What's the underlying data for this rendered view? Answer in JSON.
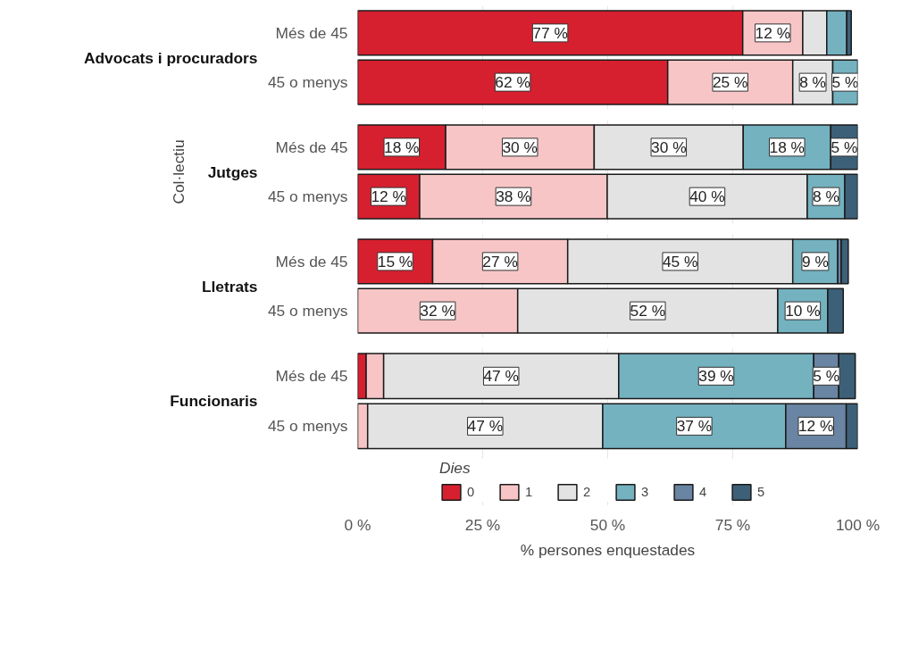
{
  "chart_data": [
    {
      "type": "bar",
      "orientation": "horizontal",
      "stacked": true,
      "title": "Advocats i procuradors",
      "categories": [
        "Més de 45",
        "45 o menys"
      ],
      "xlim": [
        0,
        100
      ],
      "xticks": [
        {
          "value": 0,
          "label": null
        },
        {
          "value": 25,
          "label": null
        },
        {
          "value": 50,
          "label": null
        },
        {
          "value": 75,
          "label": null
        },
        {
          "value": 100,
          "label": null
        }
      ],
      "tick_labels": "y",
      "grid": "x",
      "series": [
        {
          "color": "#d7202f",
          "values": [
            77,
            62
          ],
          "value_labels": [
            "77 %",
            "62 %"
          ]
        },
        {
          "color": "#f8c5c6",
          "values": [
            12,
            25
          ],
          "value_labels": [
            "12 %",
            "25 %"
          ]
        },
        {
          "color": "#e3e3e3",
          "values": [
            4.8,
            8
          ],
          "value_labels": [
            null,
            "8 %"
          ]
        },
        {
          "color": "#74b2c0",
          "values": [
            4,
            5
          ],
          "value_labels": [
            null,
            "5 %"
          ]
        },
        {
          "color": "#6a84a3",
          "values": [
            null,
            null
          ],
          "value_labels": [
            null,
            null
          ]
        },
        {
          "color": "#3d6079",
          "values": [
            0.9,
            null
          ],
          "value_labels": [
            null,
            null
          ]
        }
      ]
    },
    {
      "type": "bar",
      "orientation": "horizontal",
      "stacked": true,
      "title": "Jutges",
      "ylabel": "Col·lectiu",
      "categories": [
        "Més de 45",
        "45 o menys"
      ],
      "xlim": [
        0,
        100
      ],
      "xticks": [
        {
          "value": 0,
          "label": null
        },
        {
          "value": 25,
          "label": null
        },
        {
          "value": 50,
          "label": null
        },
        {
          "value": 75,
          "label": null
        },
        {
          "value": 100,
          "label": null
        }
      ],
      "tick_labels": "y",
      "grid": "x",
      "series": [
        {
          "color": "#d7202f",
          "values": [
            17.6,
            12.4
          ],
          "value_labels": [
            "18 %",
            "12 %"
          ]
        },
        {
          "color": "#f8c5c6",
          "values": [
            29.7,
            37.5
          ],
          "value_labels": [
            "30 %",
            "38 %"
          ]
        },
        {
          "color": "#e3e3e3",
          "values": [
            29.8,
            40
          ],
          "value_labels": [
            "30 %",
            "40 %"
          ]
        },
        {
          "color": "#74b2c0",
          "values": [
            17.5,
            7.5
          ],
          "value_labels": [
            "18 %",
            "8 %"
          ]
        },
        {
          "color": "#6a84a3",
          "values": [
            null,
            null
          ],
          "value_labels": [
            null,
            null
          ]
        },
        {
          "color": "#3d6079",
          "values": [
            5.4,
            2.6
          ],
          "value_labels": [
            "5 %",
            null
          ]
        }
      ]
    },
    {
      "type": "bar",
      "orientation": "horizontal",
      "stacked": true,
      "title": "Lletrats",
      "categories": [
        "Més de 45",
        "45 o menys"
      ],
      "xlim": [
        0,
        100
      ],
      "xticks": [
        {
          "value": 0,
          "label": null
        },
        {
          "value": 25,
          "label": null
        },
        {
          "value": 50,
          "label": null
        },
        {
          "value": 75,
          "label": null
        },
        {
          "value": 100,
          "label": null
        }
      ],
      "tick_labels": "y",
      "grid": "x",
      "series": [
        {
          "color": "#d7202f",
          "values": [
            15,
            null
          ],
          "value_labels": [
            "15 %",
            null
          ]
        },
        {
          "color": "#f8c5c6",
          "values": [
            27,
            32
          ],
          "value_labels": [
            "27 %",
            "32 %"
          ]
        },
        {
          "color": "#e3e3e3",
          "values": [
            45,
            52
          ],
          "value_labels": [
            "45 %",
            "52 %"
          ]
        },
        {
          "color": "#74b2c0",
          "values": [
            9,
            10
          ],
          "value_labels": [
            "9 %",
            "10 %"
          ]
        },
        {
          "color": "#6a84a3",
          "values": [
            0.7,
            null
          ],
          "value_labels": [
            null,
            null
          ]
        },
        {
          "color": "#3d6079",
          "values": [
            1.4,
            3.1
          ],
          "value_labels": [
            null,
            null
          ]
        }
      ]
    },
    {
      "type": "bar",
      "orientation": "horizontal",
      "stacked": true,
      "title": "Funcionaris",
      "categories": [
        "Més de 45",
        "45 o menys"
      ],
      "xlim": [
        0,
        100
      ],
      "xticks": [
        {
          "value": 0,
          "label": "0 %"
        },
        {
          "value": 25,
          "label": "25 %"
        },
        {
          "value": 50,
          "label": "50 %"
        },
        {
          "value": 75,
          "label": "75 %"
        },
        {
          "value": 100,
          "label": "100 %"
        }
      ],
      "grid": "x",
      "xlabel": "% persones enquestades",
      "legend": "bottom",
      "legend_title": "Dies",
      "series": [
        {
          "name": "0",
          "color": "#d7202f",
          "values": [
            1.7,
            null
          ],
          "value_labels": [
            null,
            null
          ]
        },
        {
          "name": "1",
          "color": "#f8c5c6",
          "values": [
            3.5,
            2
          ],
          "value_labels": [
            null,
            null
          ]
        },
        {
          "name": "2",
          "color": "#e3e3e3",
          "values": [
            47,
            47
          ],
          "value_labels": [
            "47 %",
            "47 %"
          ]
        },
        {
          "name": "3",
          "color": "#74b2c0",
          "values": [
            39,
            36.6
          ],
          "value_labels": [
            "39 %",
            "37 %"
          ]
        },
        {
          "name": "4",
          "color": "#6a84a3",
          "values": [
            5,
            12.1
          ],
          "value_labels": [
            "5 %",
            "12 %"
          ]
        },
        {
          "name": "5",
          "color": "#3d6079",
          "values": [
            3.3,
            2.3
          ],
          "value_labels": [
            null,
            null
          ]
        }
      ]
    }
  ]
}
